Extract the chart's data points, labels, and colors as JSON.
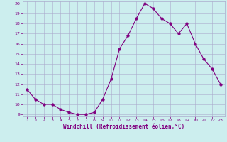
{
  "hours": [
    0,
    1,
    2,
    3,
    4,
    5,
    6,
    7,
    8,
    9,
    10,
    11,
    12,
    13,
    14,
    15,
    16,
    17,
    18,
    19,
    20,
    21,
    22,
    23
  ],
  "values": [
    11.5,
    10.5,
    10.0,
    10.0,
    9.5,
    9.2,
    9.0,
    9.0,
    9.2,
    10.5,
    12.5,
    15.5,
    16.8,
    18.5,
    20.0,
    19.5,
    18.5,
    18.0,
    17.0,
    18.0,
    16.0,
    14.5,
    13.5,
    12.0
  ],
  "line_color": "#800080",
  "marker": "o",
  "bg_color": "#cceeee",
  "grid_color": "#aaaacc",
  "xlabel": "Windchill (Refroidissement éolien,°C)",
  "ylim": [
    9,
    20
  ],
  "xlim": [
    -0.5,
    23.5
  ],
  "yticks": [
    9,
    10,
    11,
    12,
    13,
    14,
    15,
    16,
    17,
    18,
    19,
    20
  ],
  "xticks": [
    0,
    1,
    2,
    3,
    4,
    5,
    6,
    7,
    8,
    9,
    10,
    11,
    12,
    13,
    14,
    15,
    16,
    17,
    18,
    19,
    20,
    21,
    22,
    23
  ],
  "xlabel_color": "#800080",
  "tick_color": "#800080",
  "marker_color": "#800080",
  "marker_size": 2.5,
  "line_width": 0.8
}
